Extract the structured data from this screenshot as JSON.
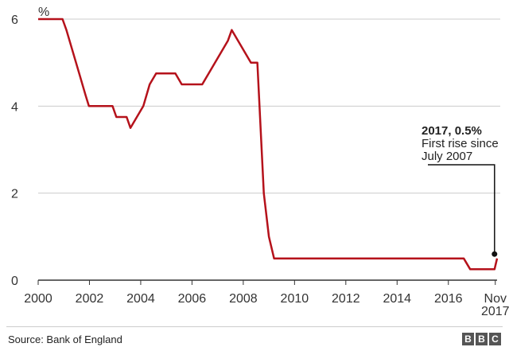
{
  "chart_data": {
    "type": "line",
    "unit_label": "%",
    "ylim": [
      0,
      6
    ],
    "y_ticks": [
      "0",
      "2",
      "4",
      "6"
    ],
    "xlim": [
      2000,
      2017.9
    ],
    "x_tick_values": [
      2000,
      2002,
      2004,
      2006,
      2008,
      2010,
      2012,
      2014,
      2016,
      2017.83
    ],
    "x_tick_labels": [
      "2000",
      "2002",
      "2004",
      "2006",
      "2008",
      "2010",
      "2012",
      "2014",
      "2016",
      "Nov"
    ],
    "x_tick_sublabel": "2017",
    "grid": true,
    "line_color": "#b5121b",
    "series": [
      {
        "x": [
          2000.0,
          2000.7,
          2000.95,
          2001.1,
          2001.6,
          2001.85,
          2001.98,
          2002.9,
          2003.05,
          2003.45,
          2003.6,
          2003.85,
          2004.1,
          2004.35,
          2004.6,
          2005.35,
          2005.6,
          2006.4,
          2006.65,
          2007.4,
          2007.55,
          2008.3,
          2008.55,
          2008.8,
          2009.0,
          2009.2,
          2016.6,
          2016.85,
          2017.8,
          2017.9
        ],
        "y": [
          6.0,
          6.0,
          6.0,
          5.75,
          4.75,
          4.25,
          4.0,
          4.0,
          3.75,
          3.75,
          3.5,
          3.75,
          4.0,
          4.5,
          4.75,
          4.75,
          4.5,
          4.5,
          4.75,
          5.5,
          5.75,
          5.0,
          5.0,
          2.0,
          1.0,
          0.5,
          0.5,
          0.25,
          0.25,
          0.5
        ]
      }
    ],
    "marker": {
      "x": 2017.8,
      "y": 0.6
    },
    "annotation": {
      "title": "2017, 0.5%",
      "lines": [
        "First rise since",
        "July 2007"
      ]
    }
  },
  "footer": {
    "source": "Source: Bank of England",
    "logo_letters": [
      "B",
      "B",
      "C"
    ]
  }
}
